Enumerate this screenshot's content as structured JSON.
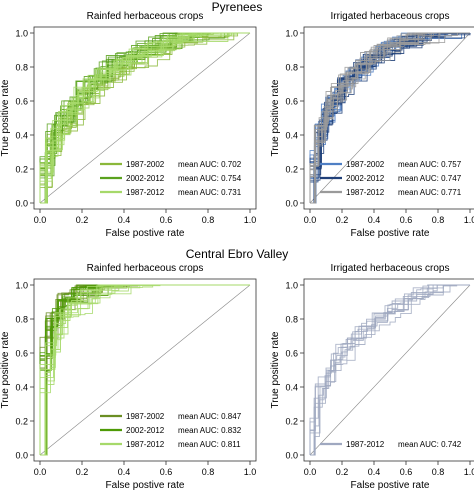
{
  "figure": {
    "sections": [
      "Pyrenees",
      "Central Ebro Valley"
    ]
  },
  "chart_data": [
    {
      "type": "line",
      "section": "Pyrenees",
      "title": "Rainfed herbaceous crops",
      "xlabel": "False postive rate",
      "ylabel": "True positive rate",
      "xlim": [
        0,
        1
      ],
      "ylim": [
        0,
        1
      ],
      "xticks": [
        "0.0",
        "0.2",
        "0.4",
        "0.6",
        "0.8",
        "1.0"
      ],
      "yticks": [
        "0.0",
        "0.2",
        "0.4",
        "0.6",
        "0.8",
        "1.0"
      ],
      "grid": false,
      "diagonal_reference": true,
      "legend_position": "bottom-right",
      "series": [
        {
          "name": "1987-2002",
          "auc_label": "mean AUC: 0.702",
          "color": "#8bb83a",
          "curves": 14,
          "mean_curve": {
            "x": [
              0,
              0.05,
              0.1,
              0.2,
              0.3,
              0.4,
              0.5,
              0.6,
              0.7,
              0.8,
              0.9,
              1.0
            ],
            "y": [
              0,
              0.28,
              0.42,
              0.58,
              0.68,
              0.76,
              0.83,
              0.88,
              0.93,
              0.96,
              0.98,
              1.0
            ]
          }
        },
        {
          "name": "2002-2012",
          "auc_label": "mean AUC: 0.754",
          "color": "#5aa21e",
          "curves": 14,
          "mean_curve": {
            "x": [
              0,
              0.05,
              0.1,
              0.2,
              0.3,
              0.4,
              0.5,
              0.6,
              0.7,
              0.8,
              0.9,
              1.0
            ],
            "y": [
              0,
              0.35,
              0.5,
              0.66,
              0.76,
              0.83,
              0.88,
              0.92,
              0.95,
              0.97,
              0.99,
              1.0
            ]
          }
        },
        {
          "name": "1987-2012",
          "auc_label": "mean AUC: 0.731",
          "color": "#a6d96a",
          "curves": 14,
          "mean_curve": {
            "x": [
              0,
              0.05,
              0.1,
              0.2,
              0.3,
              0.4,
              0.5,
              0.6,
              0.7,
              0.8,
              0.9,
              1.0
            ],
            "y": [
              0,
              0.31,
              0.46,
              0.62,
              0.72,
              0.8,
              0.86,
              0.9,
              0.94,
              0.97,
              0.99,
              1.0
            ]
          }
        }
      ]
    },
    {
      "type": "line",
      "section": "Pyrenees",
      "title": "Irrigated herbaceous crops",
      "xlabel": "False postive rate",
      "ylabel": "True positive rate",
      "xlim": [
        0,
        1
      ],
      "ylim": [
        0,
        1
      ],
      "xticks": [
        "0.0",
        "0.2",
        "0.4",
        "0.6",
        "0.8",
        "1.0"
      ],
      "yticks": [
        "0.0",
        "0.2",
        "0.4",
        "0.6",
        "0.8",
        "1.0"
      ],
      "grid": false,
      "diagonal_reference": true,
      "legend_position": "bottom-right",
      "series": [
        {
          "name": "1987-2002",
          "auc_label": "mean AUC: 0.757",
          "color": "#4f7fc4",
          "curves": 14,
          "mean_curve": {
            "x": [
              0,
              0.05,
              0.1,
              0.2,
              0.3,
              0.4,
              0.5,
              0.6,
              0.7,
              0.8,
              0.9,
              1.0
            ],
            "y": [
              0,
              0.36,
              0.5,
              0.66,
              0.76,
              0.83,
              0.88,
              0.92,
              0.95,
              0.97,
              0.99,
              1.0
            ]
          }
        },
        {
          "name": "2002-2012",
          "auc_label": "mean AUC: 0.747",
          "color": "#1f3f78",
          "curves": 14,
          "mean_curve": {
            "x": [
              0,
              0.05,
              0.1,
              0.2,
              0.3,
              0.4,
              0.5,
              0.6,
              0.7,
              0.8,
              0.9,
              1.0
            ],
            "y": [
              0,
              0.34,
              0.49,
              0.65,
              0.75,
              0.82,
              0.87,
              0.91,
              0.95,
              0.97,
              0.99,
              1.0
            ]
          }
        },
        {
          "name": "1987-2012",
          "auc_label": "mean AUC: 0.771",
          "color": "#9a9a9a",
          "curves": 14,
          "mean_curve": {
            "x": [
              0,
              0.05,
              0.1,
              0.2,
              0.3,
              0.4,
              0.5,
              0.6,
              0.7,
              0.8,
              0.9,
              1.0
            ],
            "y": [
              0,
              0.38,
              0.53,
              0.68,
              0.78,
              0.84,
              0.89,
              0.93,
              0.96,
              0.98,
              0.99,
              1.0
            ]
          }
        }
      ]
    },
    {
      "type": "line",
      "section": "Central Ebro Valley",
      "title": "Rainfed herbaceous crops",
      "xlabel": "False postive rate",
      "ylabel": "True positive rate",
      "xlim": [
        0,
        1
      ],
      "ylim": [
        0,
        1
      ],
      "xticks": [
        "0.0",
        "0.2",
        "0.4",
        "0.6",
        "0.8",
        "1.0"
      ],
      "yticks": [
        "0.0",
        "0.2",
        "0.4",
        "0.6",
        "0.8",
        "1.0"
      ],
      "grid": false,
      "diagonal_reference": true,
      "legend_position": "bottom-right",
      "series": [
        {
          "name": "1987-2002",
          "auc_label": "mean AUC: 0.847",
          "color": "#6b8e23",
          "curves": 10,
          "mean_curve": {
            "x": [
              0,
              0.02,
              0.05,
              0.1,
              0.15,
              0.2,
              0.3,
              0.4,
              0.6,
              0.8,
              1.0
            ],
            "y": [
              0,
              0.55,
              0.75,
              0.86,
              0.9,
              0.93,
              0.96,
              0.97,
              0.99,
              1.0,
              1.0
            ]
          }
        },
        {
          "name": "2002-2012",
          "auc_label": "mean AUC: 0.832",
          "color": "#4e9a06",
          "curves": 10,
          "mean_curve": {
            "x": [
              0,
              0.02,
              0.05,
              0.1,
              0.15,
              0.2,
              0.3,
              0.4,
              0.6,
              0.8,
              1.0
            ],
            "y": [
              0,
              0.5,
              0.72,
              0.84,
              0.89,
              0.92,
              0.95,
              0.97,
              0.99,
              1.0,
              1.0
            ]
          }
        },
        {
          "name": "1987-2012",
          "auc_label": "mean AUC: 0.811",
          "color": "#a6d96a",
          "curves": 12,
          "mean_curve": {
            "x": [
              0,
              0.02,
              0.05,
              0.1,
              0.15,
              0.2,
              0.3,
              0.4,
              0.6,
              0.8,
              1.0
            ],
            "y": [
              0,
              0.4,
              0.6,
              0.76,
              0.84,
              0.89,
              0.94,
              0.96,
              0.98,
              0.99,
              1.0
            ]
          }
        }
      ]
    },
    {
      "type": "line",
      "section": "Central Ebro Valley",
      "title": "Irrigated herbaceous crops",
      "xlabel": "False postive rate",
      "ylabel": "True positive rate",
      "xlim": [
        0,
        1
      ],
      "ylim": [
        0,
        1
      ],
      "xticks": [
        "0.0",
        "0.2",
        "0.4",
        "0.6",
        "0.8",
        "1.0"
      ],
      "yticks": [
        "0.0",
        "0.2",
        "0.4",
        "0.6",
        "0.8",
        "1.0"
      ],
      "grid": false,
      "diagonal_reference": true,
      "legend_position": "bottom-right",
      "series": [
        {
          "name": "1987-2012",
          "auc_label": "mean AUC: 0.742",
          "color": "#9fa8c0",
          "curves": 10,
          "mean_curve": {
            "x": [
              0,
              0.05,
              0.1,
              0.2,
              0.3,
              0.4,
              0.5,
              0.6,
              0.7,
              0.8,
              1.0
            ],
            "y": [
              0,
              0.3,
              0.45,
              0.58,
              0.68,
              0.75,
              0.82,
              0.88,
              0.93,
              0.97,
              1.0
            ]
          }
        }
      ]
    }
  ]
}
